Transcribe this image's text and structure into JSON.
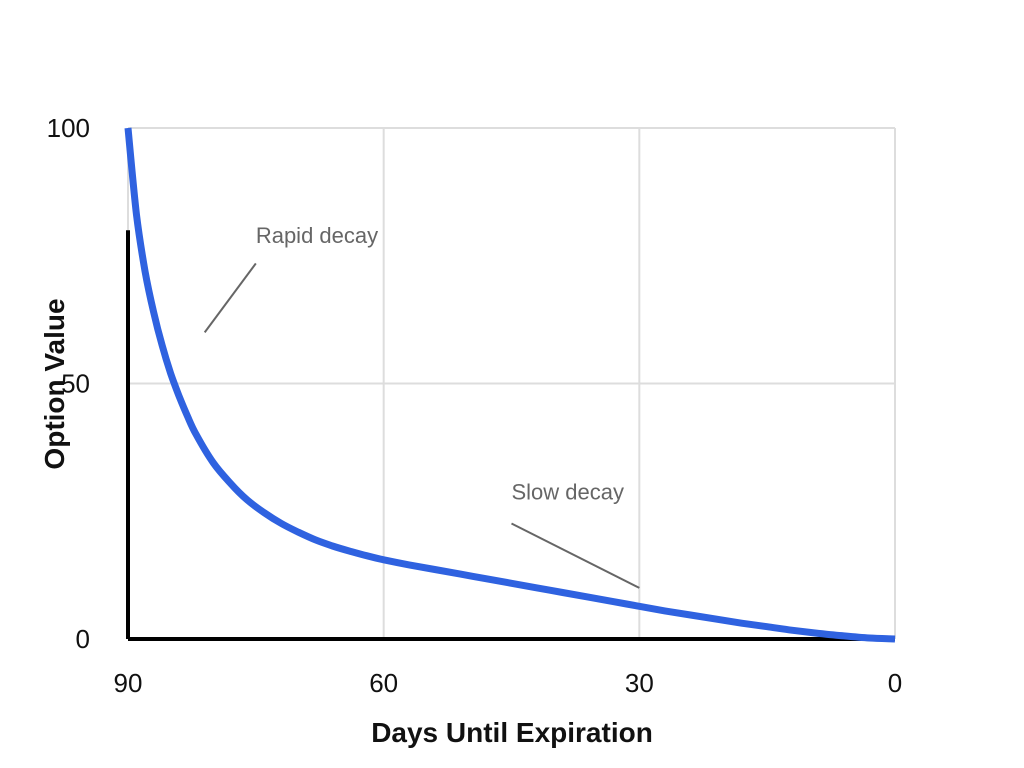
{
  "chart_data": {
    "type": "line",
    "xlabel": "Days Until Expiration",
    "ylabel": "Option Value",
    "xlim": [
      90,
      0
    ],
    "ylim": [
      0,
      100
    ],
    "x_ticks": [
      "90",
      "60",
      "30",
      "0"
    ],
    "y_ticks": [
      "0",
      "50",
      "100"
    ],
    "grid": true,
    "series": [
      {
        "x": [
          90,
          89,
          88,
          87,
          86,
          85,
          84,
          83,
          82,
          80,
          78,
          76,
          74,
          72,
          70,
          68,
          66,
          64,
          62,
          60,
          57,
          54,
          51,
          48,
          45,
          42,
          39,
          36,
          33,
          30,
          27,
          24,
          21,
          18,
          15,
          12,
          9,
          6,
          3,
          0
        ],
        "values": [
          100,
          83,
          72,
          64,
          57.5,
          52,
          47.5,
          43.5,
          40,
          34.5,
          30.5,
          27.2,
          24.7,
          22.6,
          20.9,
          19.4,
          18.2,
          17.2,
          16.3,
          15.5,
          14.5,
          13.6,
          12.7,
          11.8,
          10.9,
          10,
          9.1,
          8.2,
          7.3,
          6.4,
          5.5,
          4.7,
          3.9,
          3.1,
          2.4,
          1.7,
          1.1,
          0.6,
          0.2,
          0
        ],
        "color": "#2f62e0"
      }
    ],
    "annotations": [
      {
        "text": "Rapid decay",
        "x": 75,
        "y": 77.5,
        "pointer_from": [
          75,
          73.5
        ],
        "pointer_to": [
          81,
          60
        ]
      },
      {
        "text": "Slow decay",
        "x": 45,
        "y": 27.3,
        "pointer_from": [
          45,
          22.6
        ],
        "pointer_to": [
          30,
          10
        ]
      }
    ],
    "colors": {
      "grid": "#dddddd",
      "axis": "#000000",
      "annotation": "#666666"
    }
  }
}
